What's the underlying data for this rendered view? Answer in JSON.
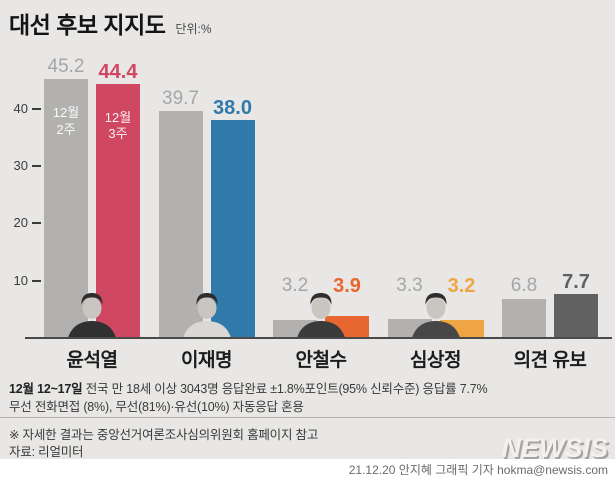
{
  "header": {
    "title": "대선 후보 지지도",
    "unit": "단위:%"
  },
  "chart_data": {
    "type": "bar",
    "title": "대선 후보 지지도",
    "unit": "%",
    "categories": [
      "윤석열",
      "이재명",
      "안철수",
      "심상정",
      "의견 유보"
    ],
    "series": [
      {
        "name": "12월 2주",
        "values": [
          45.2,
          39.7,
          3.2,
          3.3,
          6.8
        ],
        "labels": [
          "45.2",
          "39.7",
          "3.2",
          "3.3",
          "6.8"
        ],
        "bar_color": "#b2b1b0",
        "label_color": "#a6a6a6"
      },
      {
        "name": "12월 3주",
        "values": [
          44.4,
          38.0,
          3.9,
          3.2,
          7.7
        ],
        "labels": [
          "44.4",
          "38.0",
          "3.9",
          "3.2",
          "7.7"
        ],
        "bar_colors": [
          "#cf4760",
          "#3079ab",
          "#e8662f",
          "#f0a544",
          "#616161"
        ]
      }
    ],
    "ylim": [
      0,
      47
    ],
    "yticks": [
      40,
      30,
      20,
      10
    ],
    "grid": false,
    "legend_position": "inside-first-bars",
    "photos": [
      true,
      true,
      true,
      true,
      false
    ],
    "photo_suit_colors": [
      "#303030",
      "#d9d8d5",
      "#3a3a3a",
      "#474747",
      ""
    ]
  },
  "footer": {
    "line1_bold": "12월 12~17일",
    "line1_rest": " 전국 만 18세 이상 3043명 응답완료 ±1.8%포인트(95% 신뢰수준) 응답률 7.7%",
    "line2": "무선 전화면접 (8%), 무선(81%)·유선(10%) 자동응답 혼용",
    "note": "※ 자세한 결과는 중앙선거여론조사심의위원회 홈페이지 참고",
    "source": "자료: 리얼미터"
  },
  "branding": {
    "logo": "NEWSIS",
    "credit": "21.12.20 안지혜 그래픽 기자 hokma@newsis.com"
  }
}
